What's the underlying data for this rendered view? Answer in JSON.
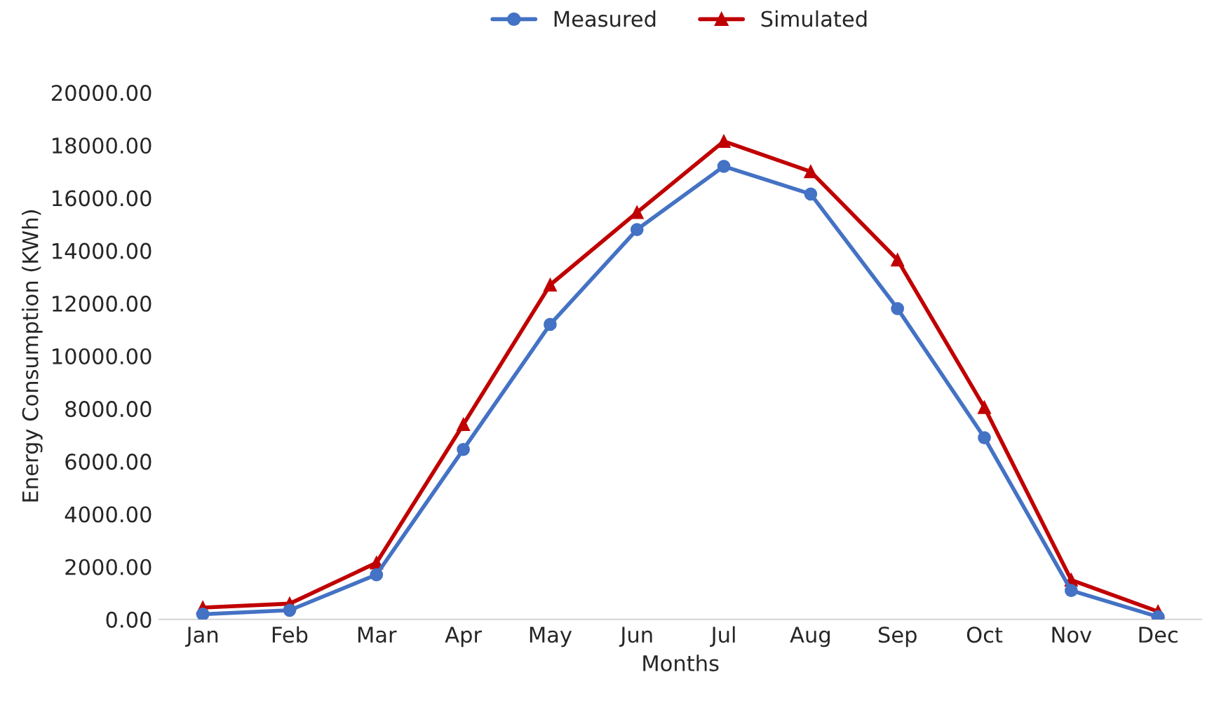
{
  "chart_data": {
    "type": "line",
    "xlabel": "Months",
    "ylabel": "Energy Consumption (KWh)",
    "categories": [
      "Jan",
      "Feb",
      "Mar",
      "Apr",
      "May",
      "Jun",
      "Jul",
      "Aug",
      "Sep",
      "Oct",
      "Nov",
      "Dec"
    ],
    "series": [
      {
        "name": "Measured",
        "color": "#4472c4",
        "marker": "circle",
        "values": [
          200,
          350,
          1700,
          6450,
          11200,
          14800,
          17200,
          16150,
          11800,
          6900,
          1100,
          100
        ]
      },
      {
        "name": "Simulated",
        "color": "#c00000",
        "marker": "triangle",
        "values": [
          450,
          600,
          2150,
          7400,
          12700,
          15450,
          18150,
          17000,
          13650,
          8050,
          1500,
          300
        ]
      }
    ],
    "ylim": [
      0,
      20000
    ],
    "yticks": [
      {
        "value": 0,
        "label": "0.00"
      },
      {
        "value": 2000,
        "label": "2000.00"
      },
      {
        "value": 4000,
        "label": "4000.00"
      },
      {
        "value": 6000,
        "label": "6000.00"
      },
      {
        "value": 8000,
        "label": "8000.00"
      },
      {
        "value": 10000,
        "label": "10000.00"
      },
      {
        "value": 12000,
        "label": "12000.00"
      },
      {
        "value": 14000,
        "label": "14000.00"
      },
      {
        "value": 16000,
        "label": "16000.00"
      },
      {
        "value": 18000,
        "label": "18000.00"
      },
      {
        "value": 20000,
        "label": "20000.00"
      }
    ],
    "grid": false,
    "legend": "top",
    "line_style": "solid"
  }
}
